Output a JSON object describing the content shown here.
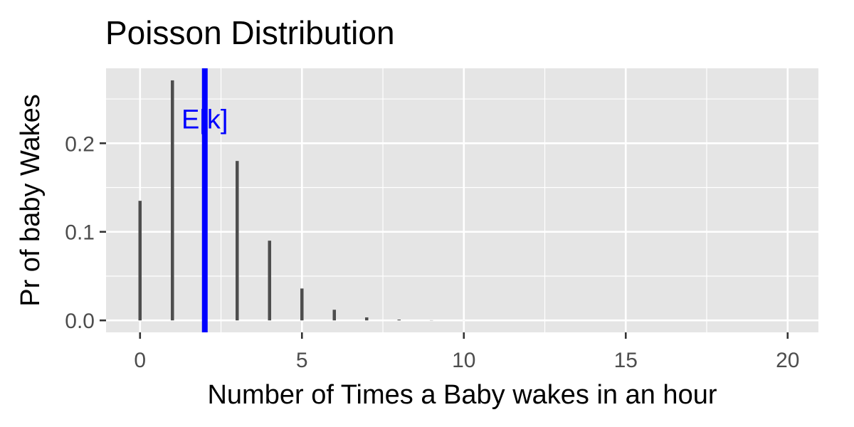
{
  "chart_data": {
    "type": "bar",
    "title": "Poisson Distribution",
    "xlabel": "Number of Times a Baby wakes in an hour",
    "ylabel": "Pr of baby Wakes",
    "x": [
      0,
      1,
      2,
      3,
      4,
      5,
      6,
      7,
      8,
      9,
      10,
      11,
      12,
      13,
      14,
      15,
      16,
      17,
      18,
      19,
      20
    ],
    "values": [
      0.135,
      0.271,
      0.271,
      0.18,
      0.09,
      0.036,
      0.012,
      0.0034,
      0.0009,
      0.0002,
      4e-05,
      0,
      0,
      0,
      0,
      0,
      0,
      0,
      0,
      0,
      0
    ],
    "xlim": [
      -1.05,
      20.95
    ],
    "ylim": [
      -0.0135,
      0.2846
    ],
    "x_ticks": [
      0,
      5,
      10,
      15,
      20
    ],
    "x_tick_labels": [
      "0",
      "5",
      "10",
      "15",
      "20"
    ],
    "y_ticks": [
      0.0,
      0.1,
      0.2
    ],
    "y_tick_labels": [
      "0.0",
      "0.1",
      "0.2"
    ],
    "x_minor_ticks": [
      -1.05,
      2.5,
      7.5,
      12.5,
      17.5
    ],
    "y_minor_ticks": [
      0.05,
      0.15,
      0.25
    ],
    "grid": true,
    "panel_background": "#e5e5e5",
    "grid_color": "#ffffff",
    "bar_color": "#4d4d4d",
    "vline": {
      "x": 2,
      "color": "#0000ff",
      "label": "E[k]",
      "label_y": 0.228
    }
  }
}
